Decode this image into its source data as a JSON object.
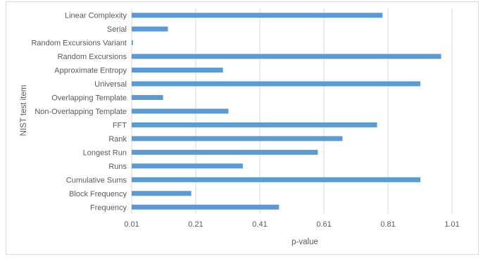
{
  "chart_data": {
    "type": "bar",
    "orientation": "horizontal",
    "categories": [
      "Frequency",
      "Block Frequency",
      "Cumulative Sums",
      "Runs",
      "Longest Run",
      "Rank",
      "FFT",
      "Non-Overlapping Template",
      "Overlapping Template",
      "Universal",
      "Approximate Entropy",
      "Random Excursions",
      "Random Excursions Variant",
      "Serial",
      "Linear Complexity"
    ],
    "values": [
      0.47,
      0.196,
      0.911,
      0.357,
      0.591,
      0.668,
      0.776,
      0.312,
      0.108,
      0.911,
      0.295,
      0.976,
      0.014,
      0.123,
      0.793
    ],
    "xlabel": "p-value",
    "ylabel": "NIST test item",
    "xlim": [
      0.01,
      1.1
    ],
    "xticks": [
      "0.01",
      "0.21",
      "0.41",
      "0.61",
      "0.81",
      "1.01"
    ],
    "grid": "vertical",
    "bar_color": "#5b9bd5",
    "grid_color": "#d9d9d9"
  }
}
